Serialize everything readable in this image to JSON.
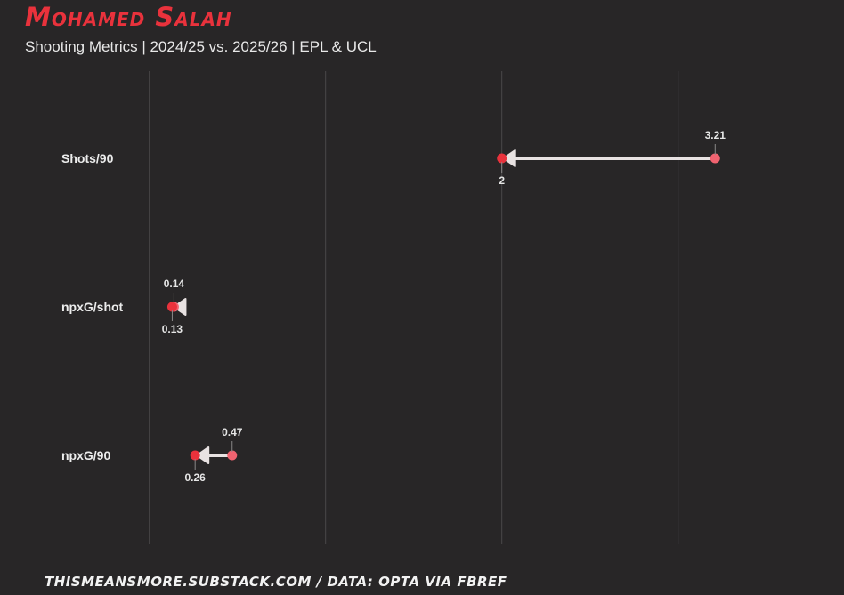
{
  "header": {
    "title": "Mohamed Salah",
    "subtitle": "Shooting Metrics | 2024/25 vs. 2025/26 | EPL & UCL"
  },
  "footer": {
    "credit": "thismeansmore.substack.com / Data: Opta via FBref"
  },
  "colors": {
    "background": "#282627",
    "title": "#e9323c",
    "point_current": "#e9323c",
    "point_previous": "#f06370",
    "arrow": "#e8e2e2",
    "grid": "#4a4849"
  },
  "chart_data": {
    "type": "dumbbell-arrow",
    "title": "",
    "xlabel": "",
    "ylabel": "",
    "xlim": [
      -0.15,
      3.85
    ],
    "gridlines_x": [
      0,
      1,
      2,
      3
    ],
    "grid": "vertical",
    "categories": [
      "Shots/90",
      "npxG/shot",
      "npxG/90"
    ],
    "series": [
      {
        "values": [
          3.21,
          0.14,
          0.47
        ]
      },
      {
        "values": [
          2,
          0.13,
          0.26
        ]
      }
    ],
    "value_labels": {
      "from": [
        "3.21",
        "0.14",
        "0.47"
      ],
      "to": [
        "2",
        "0.13",
        "0.26"
      ]
    }
  }
}
